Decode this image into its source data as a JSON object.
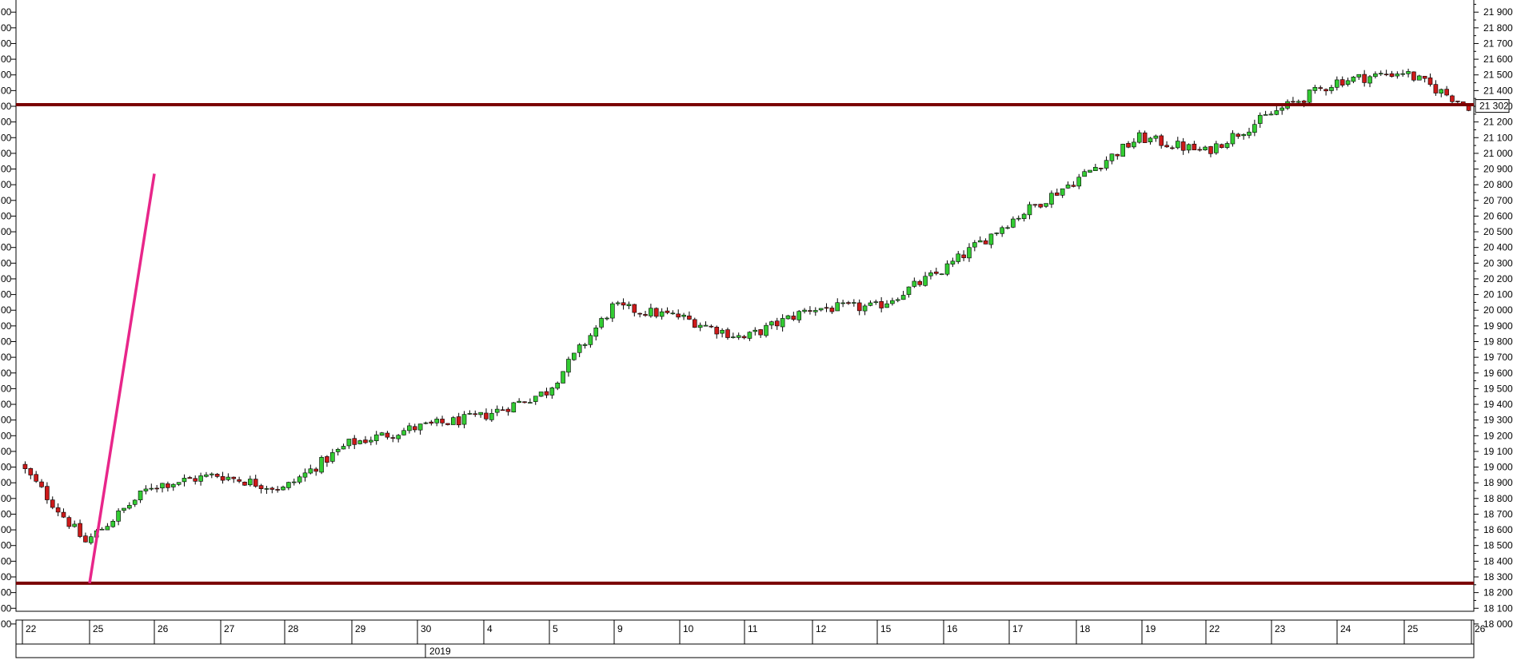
{
  "chart_data": {
    "type": "candlestick",
    "year_label": "2019",
    "y_range": [
      17900,
      21950
    ],
    "y_ticks": [
      18000,
      18100,
      18200,
      18300,
      18400,
      18500,
      18600,
      18700,
      18800,
      18900,
      19000,
      19100,
      19200,
      19300,
      19400,
      19500,
      19600,
      19700,
      19800,
      19900,
      20000,
      20100,
      20200,
      20300,
      20400,
      20500,
      20600,
      20700,
      20800,
      20900,
      21000,
      21100,
      21200,
      21300,
      21400,
      21500,
      21600,
      21700,
      21800,
      21900
    ],
    "y_tick_labels": [
      "18 000",
      "18 100",
      "18 200",
      "18 300",
      "18 400",
      "18 500",
      "18 600",
      "18 700",
      "18 800",
      "18 900",
      "19 000",
      "19 100",
      "19 200",
      "19 300",
      "19 400",
      "19 500",
      "19 600",
      "19 700",
      "19 800",
      "19 900",
      "20 000",
      "20 100",
      "20 200",
      "20 300",
      "20 400",
      "20 500",
      "20 600",
      "20 700",
      "20 800",
      "20 900",
      "21 000",
      "21 100",
      "21 200",
      "21 300",
      "21 400",
      "21 500",
      "21 600",
      "21 700",
      "21 800",
      "21 900"
    ],
    "left_tick_labels": [
      "00",
      "00",
      "00",
      "00",
      "00",
      "00",
      "00",
      "00",
      "00",
      "00",
      "00",
      "00",
      "00",
      "00",
      "00",
      "00",
      "00",
      "00",
      "00",
      "00",
      "00",
      "00",
      "00",
      "00",
      "00",
      "00",
      "00",
      "00",
      "00",
      "00",
      "00",
      "00",
      "00",
      "00",
      "00",
      "00",
      "00",
      "00",
      "00",
      "00"
    ],
    "current_price_label": "21 302",
    "x_day_labels": [
      "22",
      "25",
      "26",
      "27",
      "28",
      "29",
      "30",
      "4",
      "5",
      "9",
      "10",
      "11",
      "12",
      "15",
      "16",
      "17",
      "18",
      "19",
      "22",
      "23",
      "24",
      "25",
      "26"
    ],
    "day_close_path": [
      19020,
      18520,
      18880,
      18950,
      18860,
      19150,
      19250,
      19320,
      19480,
      20020,
      19960,
      19820,
      20010,
      20020,
      20250,
      20560,
      20820,
      21100,
      21010,
      21250,
      21460,
      21520,
      21302
    ],
    "levels": [
      {
        "value": 21310,
        "color": "#7a0000"
      },
      {
        "value": 18260,
        "color": "#7a0000"
      }
    ],
    "trendline": {
      "x_start": "25",
      "y_start": 18260,
      "x_end": "26",
      "y_end": 20870,
      "color": "#e8268a"
    },
    "up_color": "#33cc33",
    "down_color": "#cc1a1a"
  }
}
